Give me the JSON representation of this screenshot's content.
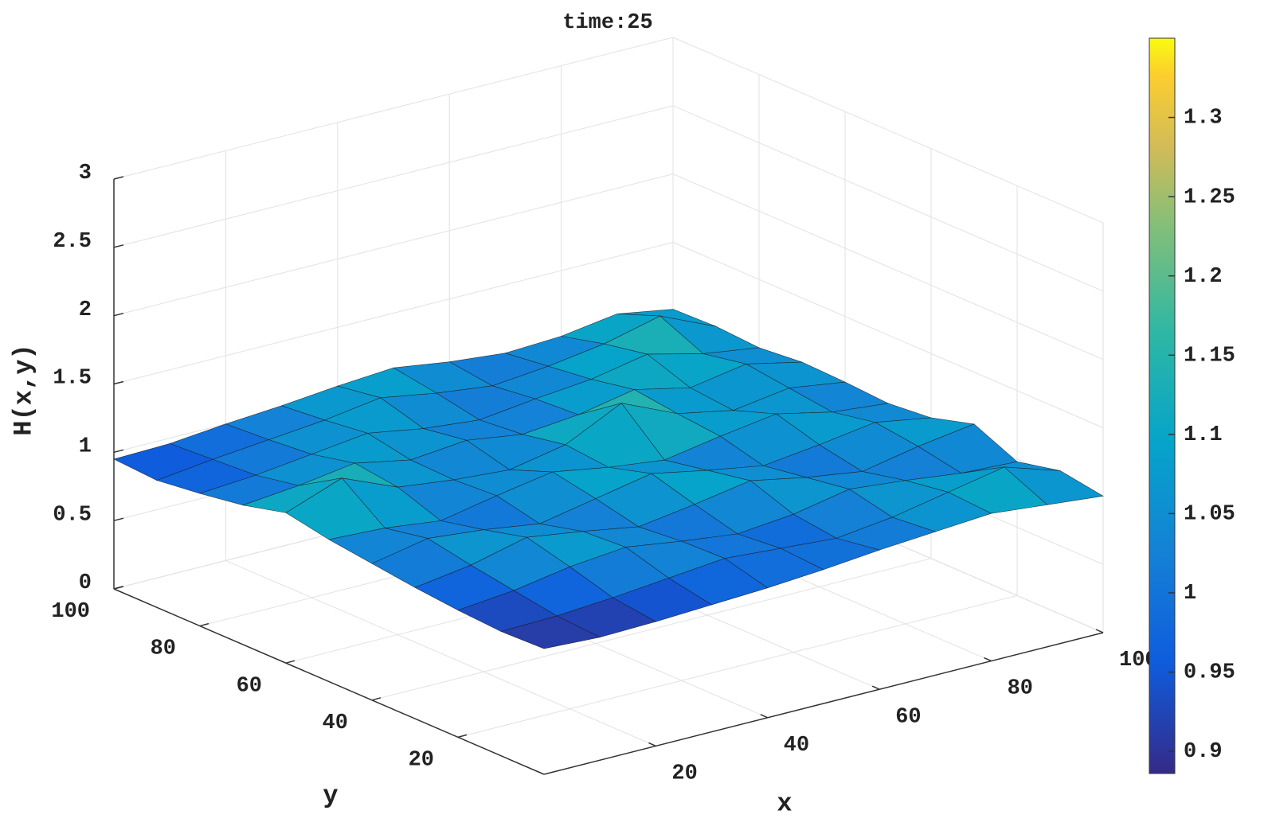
{
  "chart_data": {
    "type": "surface",
    "title": "time:25",
    "xlabel": "x",
    "ylabel": "y",
    "zlabel": "H(x,y)",
    "x": [
      0,
      10,
      20,
      30,
      40,
      50,
      60,
      70,
      80,
      90,
      100
    ],
    "y": [
      0,
      10,
      20,
      30,
      40,
      50,
      60,
      70,
      80,
      90,
      100
    ],
    "z": [
      [
        0.92,
        0.9,
        0.91,
        0.93,
        0.95,
        0.98,
        1.02,
        1.05,
        1.08,
        1.04,
        1.0
      ],
      [
        0.91,
        0.92,
        0.95,
        0.99,
        1.03,
        1.0,
        0.97,
        1.02,
        1.1,
        1.18,
        1.05
      ],
      [
        0.93,
        0.97,
        1.04,
        1.08,
        1.02,
        0.97,
        1.01,
        1.09,
        1.05,
        1.0,
        0.98
      ],
      [
        0.96,
        1.02,
        1.12,
        1.06,
        0.99,
        1.05,
        1.12,
        1.04,
        0.98,
        1.06,
        1.12
      ],
      [
        1.0,
        1.08,
        1.04,
        0.98,
        1.06,
        1.14,
        1.06,
        0.99,
        1.04,
        1.1,
        1.03
      ],
      [
        1.04,
        1.02,
        0.97,
        1.05,
        1.12,
        1.05,
        1.0,
        1.07,
        1.13,
        1.04,
        1.0
      ],
      [
        1.1,
        1.25,
        1.08,
        1.03,
        1.0,
        1.08,
        1.28,
        1.1,
        1.02,
        1.08,
        1.02
      ],
      [
        1.02,
        1.06,
        1.12,
        1.04,
        1.08,
        1.02,
        1.06,
        1.14,
        1.05,
        1.12,
        1.03
      ],
      [
        0.97,
        1.0,
        1.05,
        1.1,
        1.03,
        0.99,
        1.04,
        1.08,
        1.16,
        1.06,
        1.0
      ],
      [
        0.93,
        0.98,
        1.02,
        1.06,
        1.12,
        1.05,
        1.0,
        1.04,
        1.1,
        1.2,
        1.02
      ],
      [
        0.95,
        0.96,
        1.0,
        1.03,
        1.07,
        1.1,
        1.04,
        1.0,
        1.02,
        1.08,
        1.01
      ]
    ],
    "xlim": [
      0,
      100
    ],
    "xticks": [
      20,
      40,
      60,
      80,
      100
    ],
    "ylim": [
      0,
      100
    ],
    "yticks": [
      20,
      40,
      60,
      80,
      100
    ],
    "zlim": [
      0,
      3
    ],
    "zticks": [
      0,
      0.5,
      1,
      1.5,
      2,
      2.5,
      3
    ],
    "clim": [
      0.886,
      1.35
    ],
    "cticks": [
      0.9,
      0.95,
      1,
      1.05,
      1.1,
      1.15,
      1.2,
      1.25,
      1.3
    ],
    "colormap": "parula",
    "grid": true
  }
}
